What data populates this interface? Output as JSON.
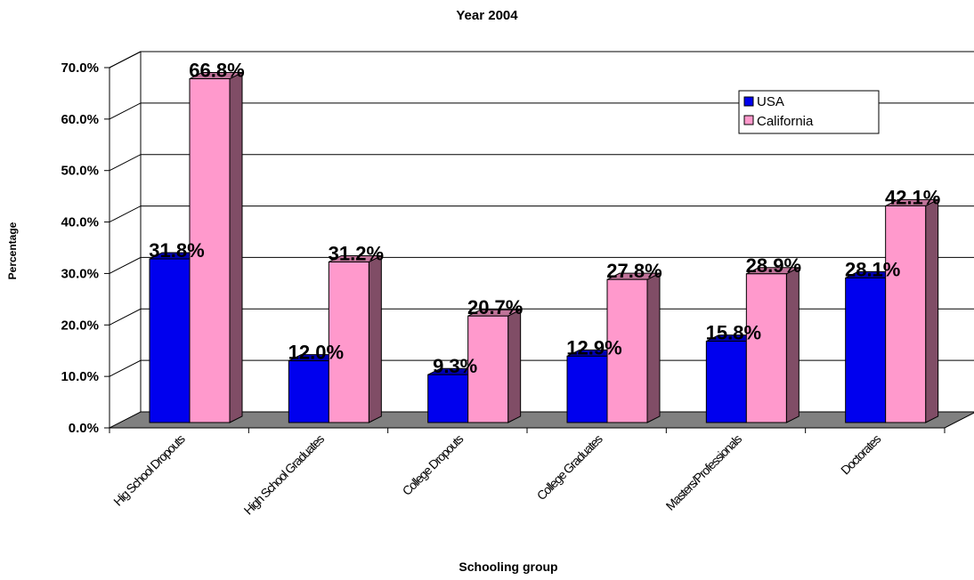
{
  "chart_data": {
    "type": "bar",
    "title": "Year 2004",
    "xlabel": "Schooling group",
    "ylabel": "Percentage",
    "categories": [
      "Hig School Dropouts",
      "High School Graduates",
      "College Dropouts",
      "College Graduates",
      "Masters/Professionals",
      "Doctorates"
    ],
    "series": [
      {
        "name": "USA",
        "values": [
          31.8,
          12.0,
          9.3,
          12.9,
          15.8,
          28.1
        ],
        "labels": [
          "31.8%",
          "12.0%",
          "9.3%",
          "12.9%",
          "15.8%",
          "28.1%"
        ],
        "color": "#0000ee"
      },
      {
        "name": "California",
        "values": [
          66.8,
          31.2,
          20.7,
          27.8,
          28.9,
          42.1
        ],
        "labels": [
          "66.8%",
          "31.2%",
          "20.7%",
          "27.8%",
          "28.9%",
          "42.1%"
        ],
        "color": "#ff99cc"
      }
    ],
    "ylim": [
      0,
      70
    ],
    "yticks": [
      "0.0%",
      "10.0%",
      "20.0%",
      "30.0%",
      "40.0%",
      "50.0%",
      "60.0%",
      "70.0%"
    ],
    "grid": true,
    "legend": "top-right",
    "floor_color": "#808080"
  }
}
